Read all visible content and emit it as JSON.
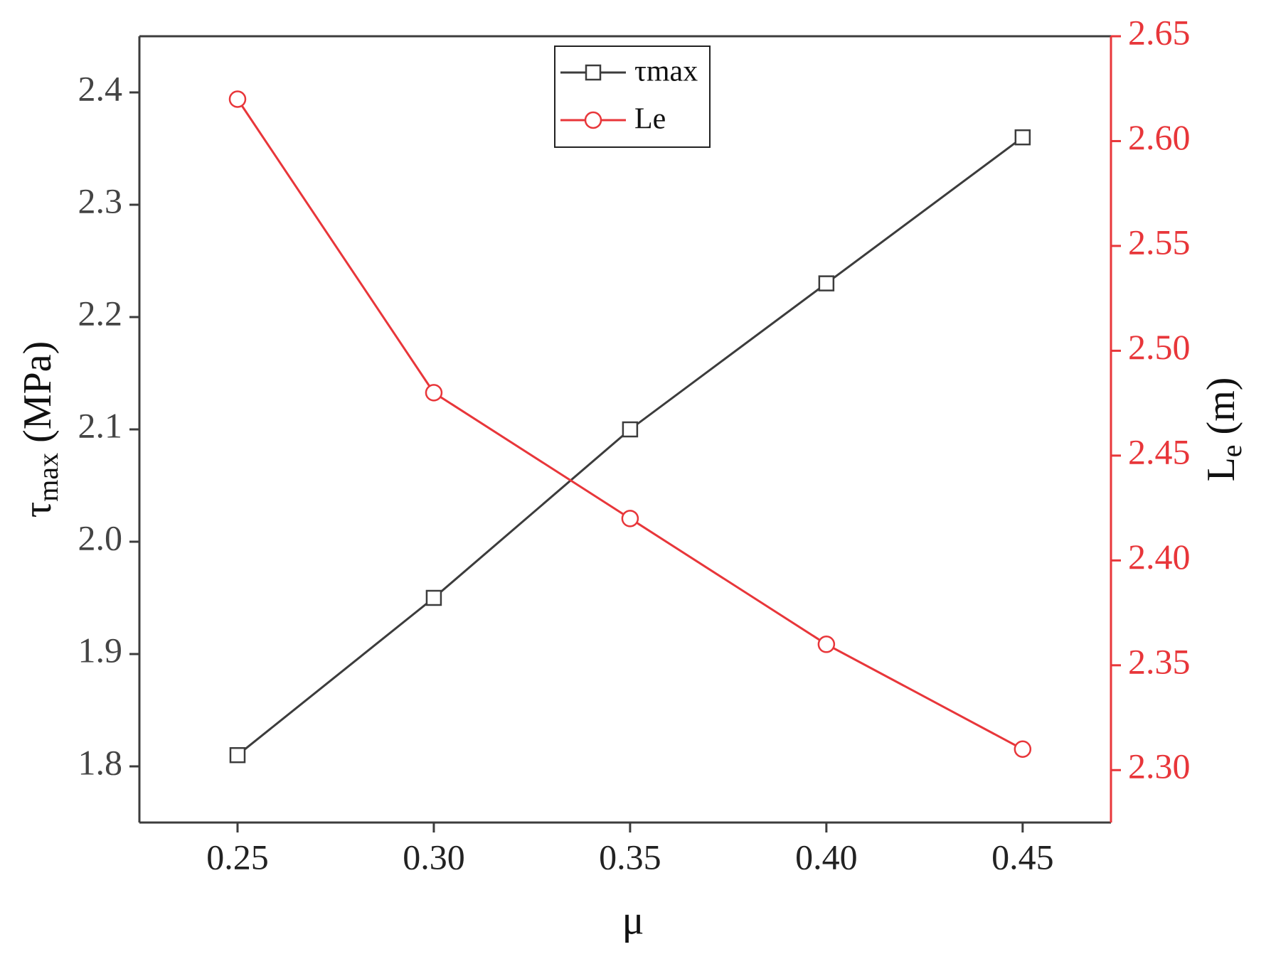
{
  "chart_data": {
    "type": "line",
    "x": [
      0.25,
      0.3,
      0.35,
      0.4,
      0.45
    ],
    "xlabel": "μ",
    "ylabel": [
      "τ",
      "max",
      " (MPa)"
    ],
    "y2label": [
      "L",
      "e",
      " (m)"
    ],
    "xlim": [
      0.225,
      0.4725
    ],
    "xticks": [
      0.25,
      {
        "value": 0.3,
        "label": "0.30"
      },
      0.35,
      {
        "value": 0.4,
        "label": "0.40"
      },
      0.45
    ],
    "ylim": [
      1.75,
      2.45
    ],
    "yticks": [
      1.8,
      1.9,
      {
        "value": 2.0,
        "label": "2.0"
      },
      2.1,
      2.2,
      2.3,
      2.4
    ],
    "y2lim": [
      2.275,
      2.65
    ],
    "y2ticks": [
      {
        "value": 2.3,
        "label": "2.30"
      },
      2.35,
      {
        "value": 2.4,
        "label": "2.40"
      },
      2.45,
      {
        "value": 2.5,
        "label": "2.50"
      },
      2.55,
      {
        "value": 2.6,
        "label": "2.60"
      },
      2.65
    ],
    "legend": "upper center",
    "series": [
      {
        "name": "τmax",
        "color": "#3c3c3c",
        "marker": "square",
        "values": [
          1.81,
          1.95,
          2.1,
          2.23,
          2.36
        ]
      },
      {
        "name": "Le",
        "color": "#e8363a",
        "marker": "circle",
        "axis": "y2",
        "values": [
          2.62,
          2.48,
          2.42,
          2.36,
          2.31
        ]
      }
    ]
  }
}
